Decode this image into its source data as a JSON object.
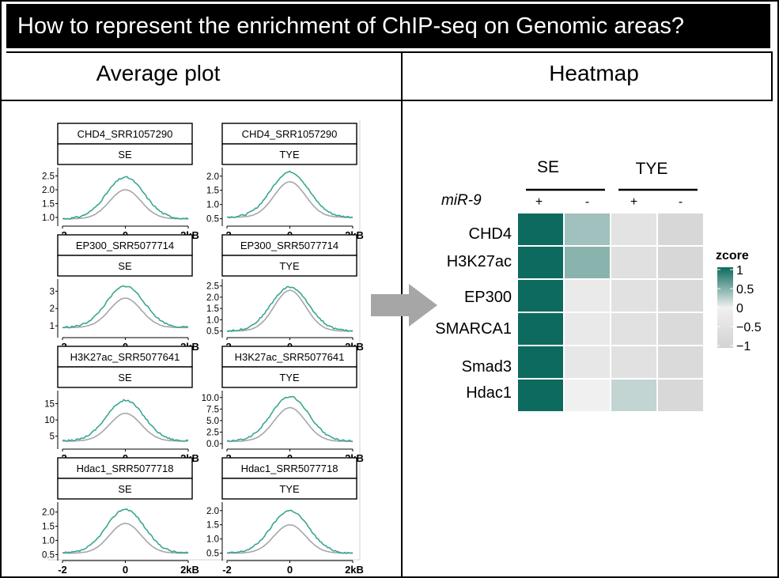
{
  "title": "How to represent the enrichment of ChIP-seq on Genomic areas?",
  "panels": {
    "left_header": "Average plot",
    "right_header": "Heatmap"
  },
  "colors": {
    "treated_line": "#3aa692",
    "control_line": "#a6a6a6",
    "heatmap_high": "#0c6b5e",
    "heatmap_mid": "#f0f0f0",
    "heatmap_low": "#d2d2d2",
    "arrow": "#a6a6a6"
  },
  "average_plots": {
    "x_ticks": [
      "-2",
      "0",
      "2kB"
    ],
    "panels": [
      {
        "sample": "CHD4_SRR1057290",
        "region": "SE",
        "yticks": [
          "1.0",
          "1.5",
          "2.0",
          "2.5"
        ],
        "ymin": 0.8,
        "ymax": 2.8,
        "peak_treated": 2.45,
        "peak_control": 2.0,
        "base": 0.95
      },
      {
        "sample": "CHD4_SRR1057290",
        "region": "TYE",
        "yticks": [
          "0.5",
          "1.0",
          "1.5",
          "2.0"
        ],
        "ymin": 0.35,
        "ymax": 2.3,
        "peak_treated": 2.15,
        "peak_control": 1.8,
        "base": 0.55
      },
      {
        "sample": "EP300_SRR5077714",
        "region": "SE",
        "yticks": [
          "1",
          "2",
          "3"
        ],
        "ymin": 0.5,
        "ymax": 3.7,
        "peak_treated": 3.3,
        "peak_control": 2.6,
        "base": 0.9
      },
      {
        "sample": "EP300_SRR5077714",
        "region": "TYE",
        "yticks": [
          "0.5",
          "1.0",
          "1.5",
          "2.0",
          "2.5"
        ],
        "ymin": 0.35,
        "ymax": 2.8,
        "peak_treated": 2.45,
        "peak_control": 2.3,
        "base": 0.5
      },
      {
        "sample": "H3K27ac_SRR5077641",
        "region": "SE",
        "yticks": [
          "5",
          "10",
          "15"
        ],
        "ymin": 2,
        "ymax": 19,
        "peak_treated": 16,
        "peak_control": 12,
        "base": 3.5
      },
      {
        "sample": "H3K27ac_SRR5077641",
        "region": "TYE",
        "yticks": [
          "0.0",
          "2.5",
          "5.0",
          "7.5",
          "10.0"
        ],
        "ymin": -0.5,
        "ymax": 11.5,
        "peak_treated": 10.2,
        "peak_control": 7.8,
        "base": 0.5
      },
      {
        "sample": "Hdac1_SRR5077718",
        "region": "SE",
        "yticks": [
          "0.5",
          "1.0",
          "1.5",
          "2.0"
        ],
        "ymin": 0.4,
        "ymax": 2.35,
        "peak_treated": 2.1,
        "peak_control": 1.6,
        "base": 0.55
      },
      {
        "sample": "Hdac1_SRR5077718",
        "region": "TYE",
        "yticks": [
          "0.5",
          "1.0",
          "1.5",
          "2.0"
        ],
        "ymin": 0.35,
        "ymax": 2.3,
        "peak_treated": 2.0,
        "peak_control": 1.5,
        "base": 0.5
      }
    ]
  },
  "heatmap": {
    "group_labels": [
      "SE",
      "TYE"
    ],
    "condition_label": "miR-9",
    "column_signs": [
      "+",
      "-",
      "+",
      "-"
    ],
    "rows": [
      "CHD4",
      "H3K27ac",
      "EP300",
      "SMARCA1",
      "Smad3",
      "Hdac1"
    ],
    "values": [
      [
        1.0,
        0.35,
        -0.45,
        -0.85
      ],
      [
        1.0,
        0.45,
        -0.55,
        -0.85
      ],
      [
        1.0,
        -0.2,
        -0.5,
        -0.75
      ],
      [
        1.0,
        -0.25,
        -0.5,
        -0.75
      ],
      [
        1.0,
        -0.3,
        -0.5,
        -0.75
      ],
      [
        1.0,
        0.0,
        0.2,
        -0.8
      ]
    ],
    "legend_title": "zcore",
    "legend_ticks": [
      "1",
      "0.5",
      "0",
      "−0.5",
      "−1"
    ]
  }
}
